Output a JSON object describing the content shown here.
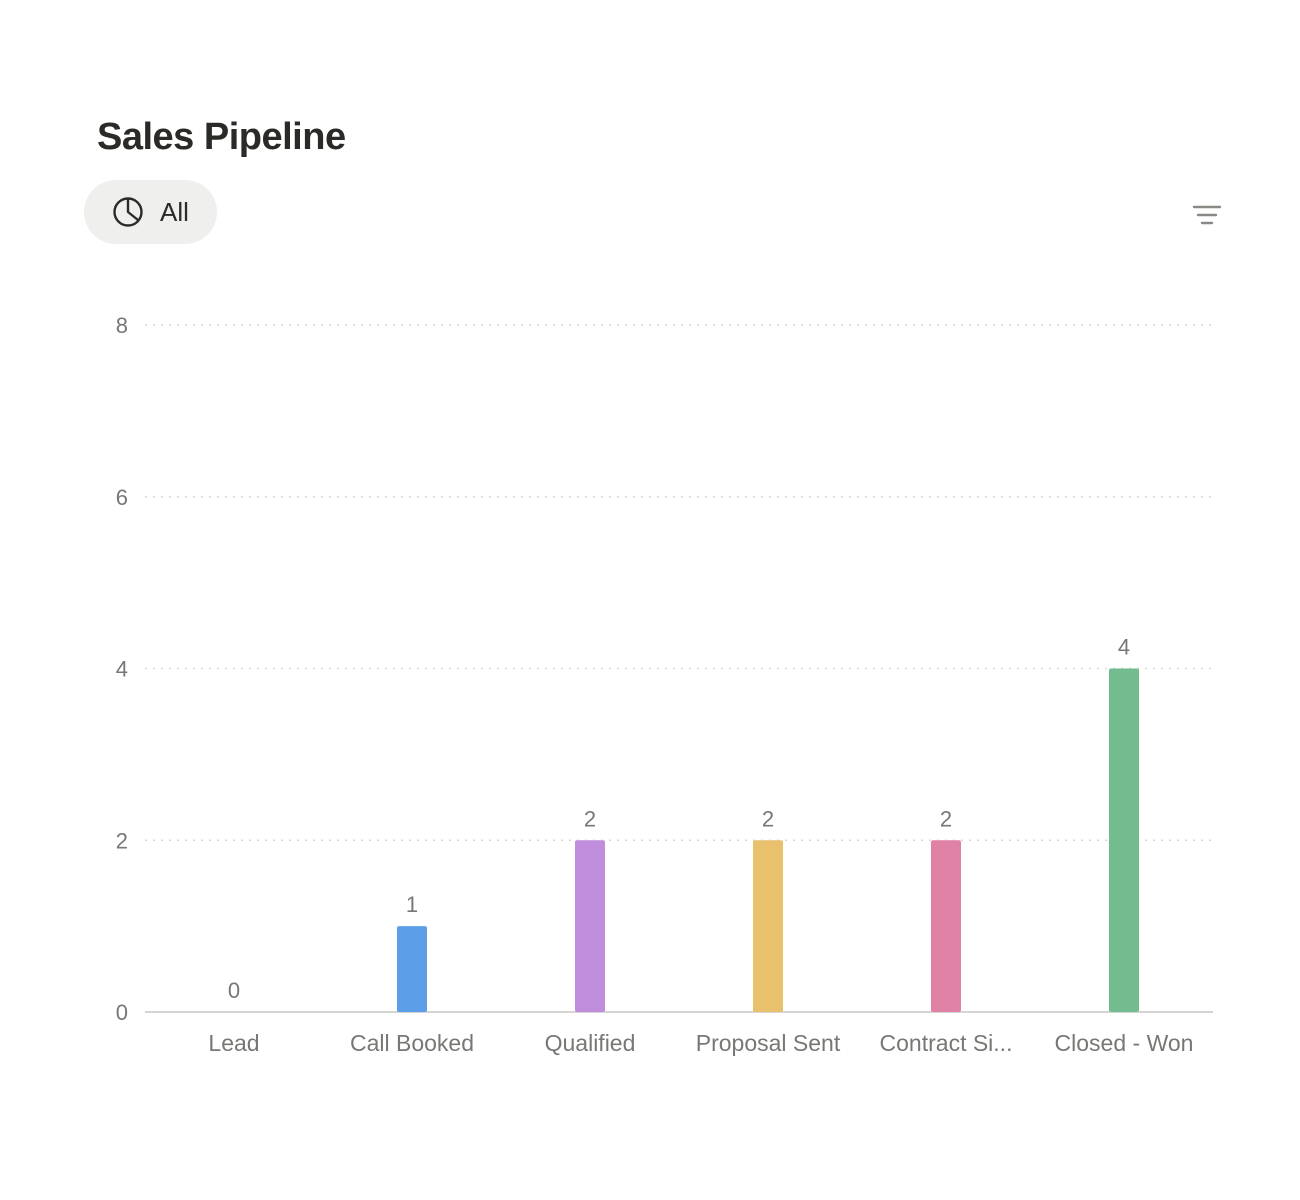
{
  "header": {
    "title": "Sales Pipeline",
    "view_label": "All",
    "view_icon": "pie-chart-icon",
    "filter_icon": "filter-icon"
  },
  "chart_data": {
    "type": "bar",
    "categories": [
      "Lead",
      "Call Booked",
      "Qualified",
      "Proposal Sent",
      "Contract Si...",
      "Closed - Won"
    ],
    "values": [
      0,
      1,
      2,
      2,
      2,
      4
    ],
    "colors": [
      "#9b9a97",
      "#5d9ee8",
      "#bf8ddb",
      "#e9c06c",
      "#df82a6",
      "#72bc8f"
    ],
    "ylim": [
      0,
      8
    ],
    "yticks": [
      0,
      2,
      4,
      6,
      8
    ],
    "grid": true,
    "data_labels": true,
    "xlabel": "",
    "ylabel": ""
  }
}
